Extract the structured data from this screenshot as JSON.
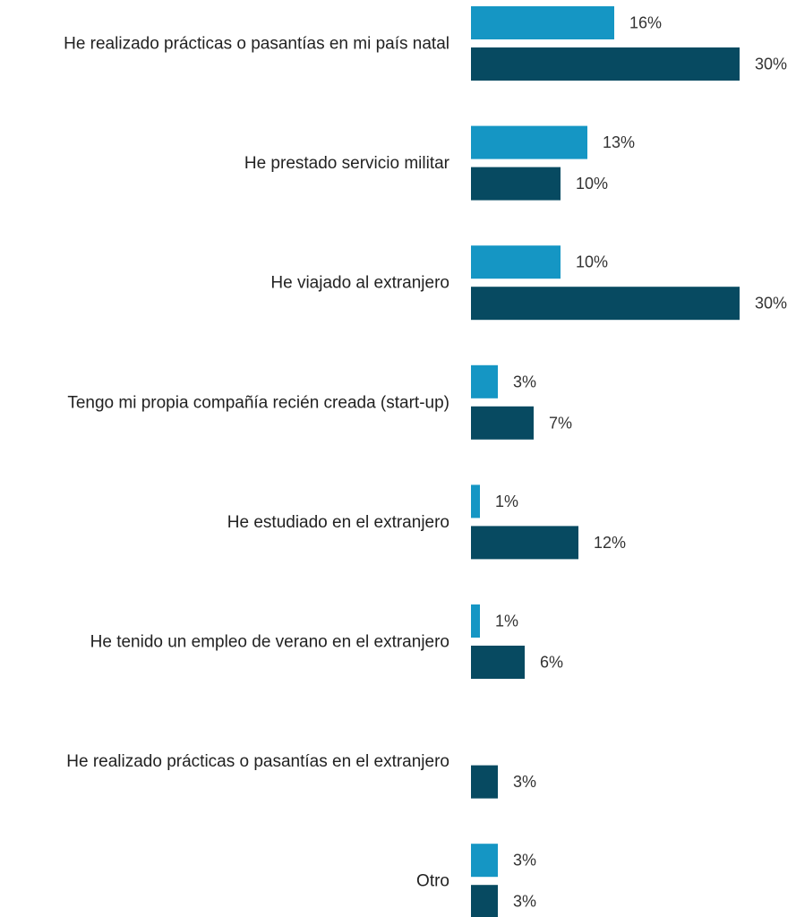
{
  "chart_data": {
    "type": "bar",
    "orientation": "horizontal",
    "categories": [
      "He realizado prácticas o pasantías en mi país natal",
      "He prestado servicio militar",
      "He viajado al extranjero",
      "Tengo mi propia compañía recién creada (start-up)",
      "He estudiado en el extranjero",
      "He tenido un empleo de verano en el extranjero",
      "He realizado prácticas o pasantías en el extranjero",
      "Otro"
    ],
    "series": [
      {
        "color": "#1596c4",
        "values": [
          16,
          13,
          10,
          3,
          1,
          1,
          null,
          3
        ],
        "labels": [
          "16%",
          "13%",
          "10%",
          "3%",
          "1%",
          "1%",
          "",
          "3%"
        ]
      },
      {
        "color": "#074a61",
        "values": [
          30,
          10,
          30,
          7,
          12,
          6,
          3,
          3
        ],
        "labels": [
          "30%",
          "10%",
          "30%",
          "7%",
          "12%",
          "6%",
          "3%",
          "3%"
        ]
      }
    ],
    "xlim": [
      0,
      30
    ],
    "unit": "%",
    "grid": false,
    "legend": "none"
  }
}
